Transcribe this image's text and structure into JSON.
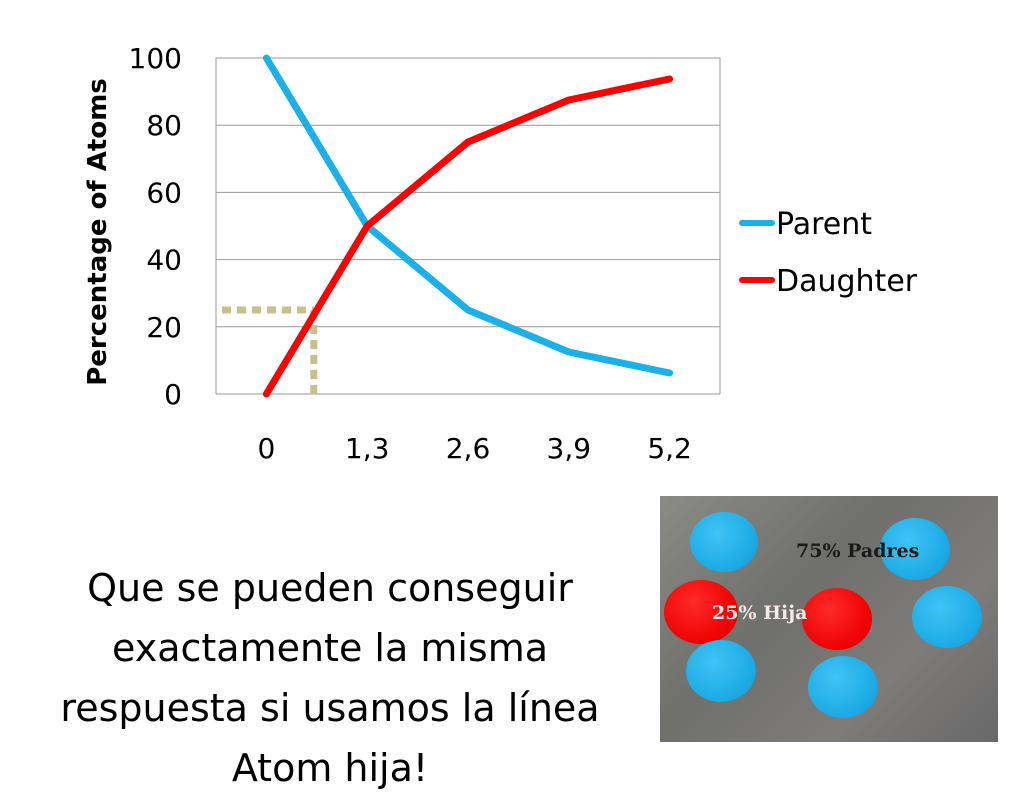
{
  "chart_data": {
    "type": "line",
    "categories": [
      "0",
      "1,3",
      "2,6",
      "3,9",
      "5,2"
    ],
    "ylabel": "Percentage of Atoms",
    "xlabel": "",
    "ylim": [
      0,
      100
    ],
    "yticks": [
      "0",
      "20",
      "40",
      "60",
      "80",
      "100"
    ],
    "grid": true,
    "legend_position": "right",
    "series": [
      {
        "name": "Parent",
        "color": "#1ab0ea",
        "values": [
          100,
          50,
          25,
          12.5,
          6.25
        ]
      },
      {
        "name": "Daughter",
        "color": "#ff0000",
        "values": [
          0,
          50,
          75,
          87.5,
          93.75
        ]
      }
    ],
    "annotation": {
      "description": "dotted guide at 25% Daughter",
      "color": "#c8c08a",
      "y_value": 25
    }
  },
  "slide": {
    "text": "Que se pueden conseguir exactamente la misma respuesta si usamos la línea Atom hija!"
  },
  "photo": {
    "label_parent": "75% Padres",
    "label_daughter": "25% Hija",
    "token_colors": {
      "parent": "#1aa9e4",
      "daughter": "#ee0000"
    }
  }
}
